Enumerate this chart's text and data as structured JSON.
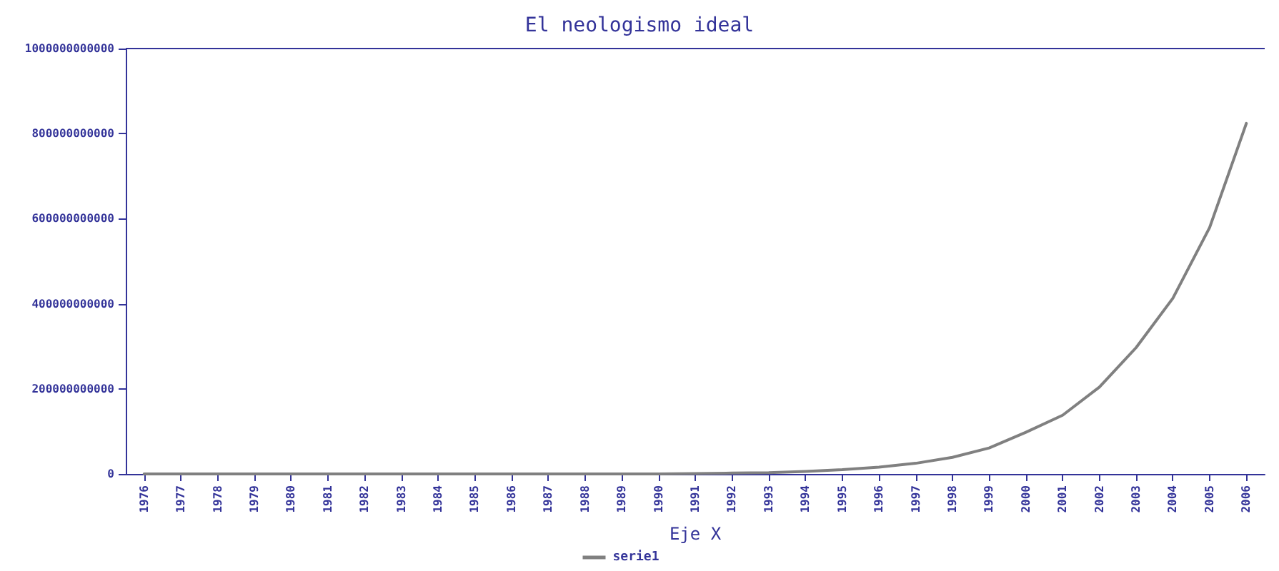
{
  "chart_data": {
    "type": "line",
    "title": "El neologismo ideal",
    "xlabel": "Eje X",
    "categories": [
      "1976",
      "1977",
      "1978",
      "1979",
      "1980",
      "1981",
      "1982",
      "1983",
      "1984",
      "1985",
      "1986",
      "1987",
      "1988",
      "1989",
      "1990",
      "1991",
      "1992",
      "1993",
      "1994",
      "1995",
      "1996",
      "1997",
      "1998",
      "1999",
      "2000",
      "2001",
      "2002",
      "2003",
      "2004",
      "2005",
      "2006"
    ],
    "series": [
      {
        "name": "serie1",
        "color": "#808080",
        "values": [
          0,
          0,
          0,
          0,
          0,
          0,
          0,
          0,
          0,
          0,
          0,
          0,
          0,
          0,
          0,
          1000000000,
          2000000000,
          3000000000,
          6000000000,
          10000000000,
          16000000000,
          25000000000,
          39000000000,
          61000000000,
          98000000000,
          138000000000,
          204000000000,
          297000000000,
          413000000000,
          579000000000,
          824000000000
        ]
      }
    ],
    "ylim": [
      0,
      1000000000000
    ],
    "yticks": [
      0,
      200000000000,
      400000000000,
      600000000000,
      800000000000,
      1000000000000
    ],
    "grid": false,
    "legend": "bottom",
    "marker": "none",
    "line_style": "solid"
  }
}
